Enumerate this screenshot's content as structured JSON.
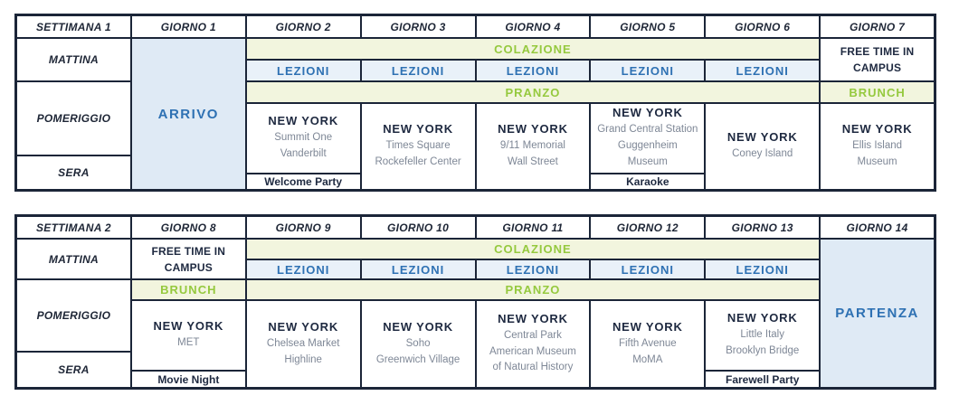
{
  "palette": {
    "navy_text": "#1e2940",
    "border_navy": "#1b2538",
    "accent_blue": "#2e71b3",
    "accent_green": "#95c93e",
    "light_green_bg": "#f2f5de",
    "light_blue_bg": "#dfeaf5",
    "lessons_blue_bg": "#e9f1f9",
    "gray_subtext": "#7e8796"
  },
  "labels": {
    "lezioni": "LEZIONI",
    "colazione": "COLAZIONE",
    "pranzo": "PRANZO",
    "brunch": "BRUNCH",
    "free_time": "FREE TIME IN CAMPUS",
    "arrivo": "ARRIVO",
    "partenza": "PARTENZA",
    "city": "NEW YORK"
  },
  "week1": {
    "headers": [
      "SETTIMANA 1",
      "GIORNO 1",
      "GIORNO 2",
      "GIORNO 3",
      "GIORNO 4",
      "GIORNO 5",
      "GIORNO 6",
      "GIORNO 7"
    ],
    "row_labels": [
      "MATTINA",
      "POMERIGGIO",
      "SERA"
    ],
    "days": {
      "day2": {
        "lines": [
          "Summit One",
          "Vanderbilt"
        ],
        "event": "Welcome Party"
      },
      "day3": {
        "lines": [
          "Times Square",
          "Rockefeller Center"
        ]
      },
      "day4": {
        "lines": [
          "9/11 Memorial",
          "Wall Street"
        ]
      },
      "day5": {
        "lines": [
          "Grand Central Station",
          "Guggenheim",
          "Museum"
        ],
        "event": "Karaoke"
      },
      "day6": {
        "lines": [
          "Coney Island"
        ]
      },
      "day7": {
        "lines": [
          "Ellis Island",
          "Museum"
        ]
      }
    }
  },
  "week2": {
    "headers": [
      "SETTIMANA 2",
      "GIORNO 8",
      "GIORNO 9",
      "GIORNO 10",
      "GIORNO 11",
      "GIORNO 12",
      "GIORNO 13",
      "GIORNO 14"
    ],
    "row_labels": [
      "MATTINA",
      "POMERIGGIO",
      "SERA"
    ],
    "days": {
      "day8": {
        "lines": [
          "MET"
        ],
        "event": "Movie Night"
      },
      "day9": {
        "lines": [
          "Chelsea Market",
          "Highline"
        ]
      },
      "day10": {
        "lines": [
          "Soho",
          "Greenwich Village"
        ]
      },
      "day11": {
        "lines": [
          "Central Park",
          "American Museum",
          "of Natural History"
        ]
      },
      "day12": {
        "lines": [
          "Fifth Avenue",
          "MoMA"
        ]
      },
      "day13": {
        "lines": [
          "Little Italy",
          "Brooklyn Bridge"
        ],
        "event": "Farewell Party"
      }
    }
  }
}
